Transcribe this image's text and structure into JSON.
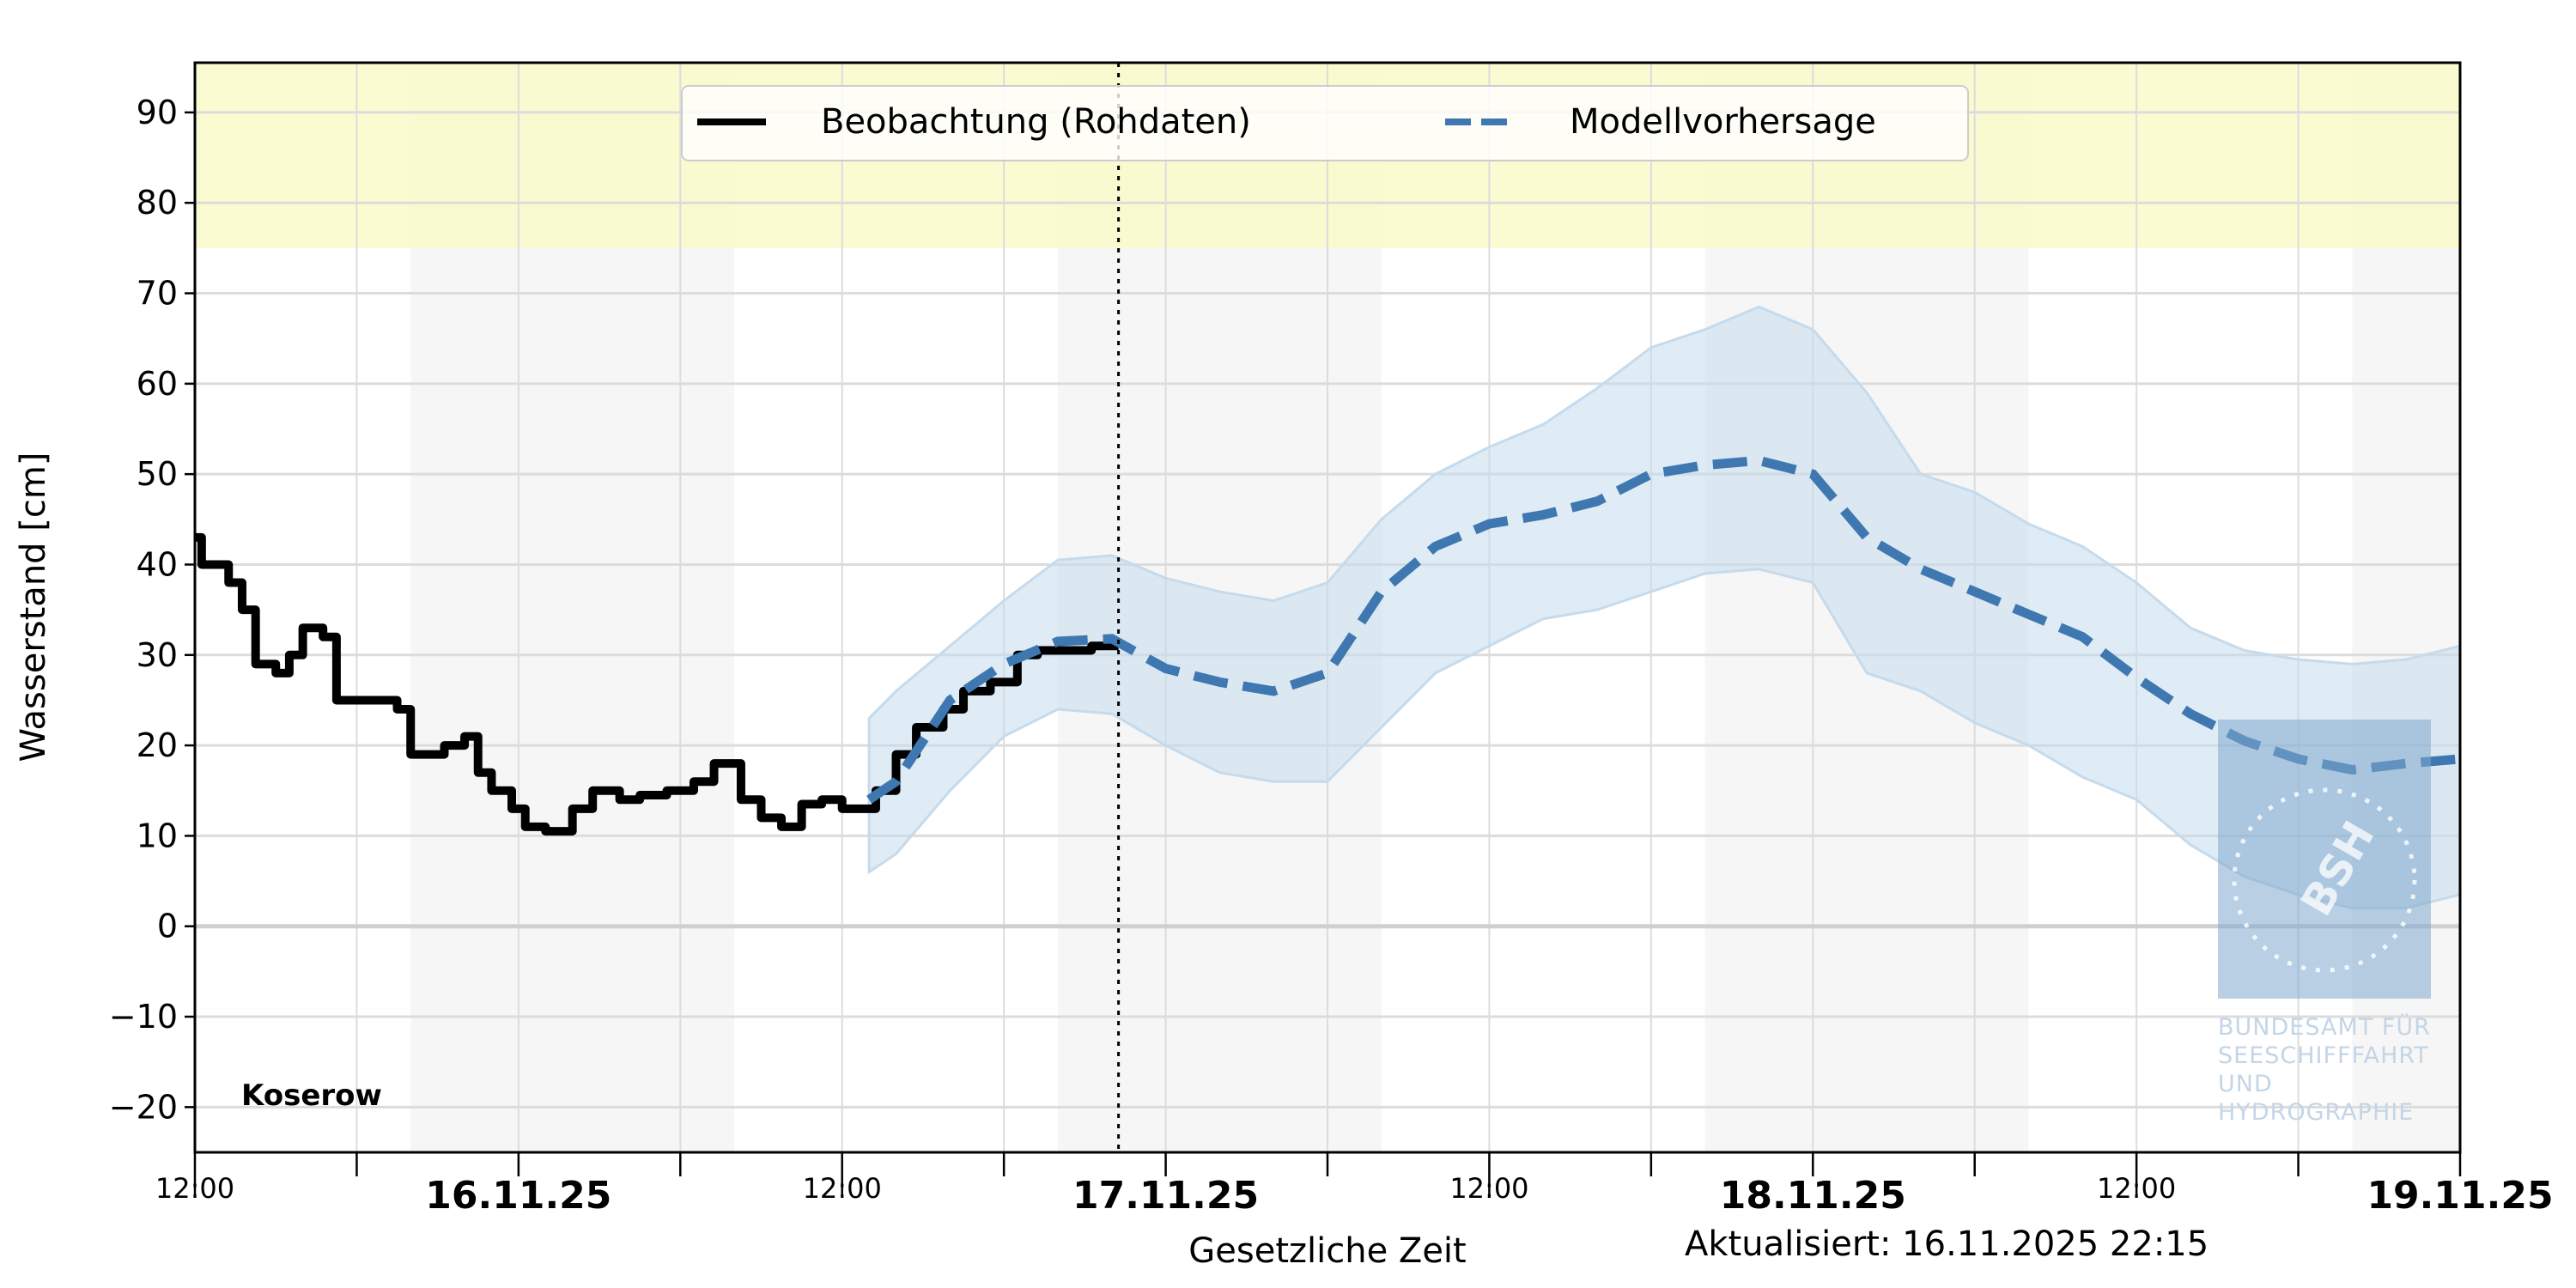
{
  "chart_data": {
    "type": "line",
    "station": "Koserow",
    "ylabel": "Wasserstand [cm]",
    "xlabel": "Gesetzliche Zeit",
    "updated": "Aktualisiert: 16.11.2025 22:15",
    "now": "2025-11-16T22:15",
    "xlim": [
      "2025-11-15T12:00",
      "2025-11-19T00:00"
    ],
    "ylim": [
      -25,
      95.5
    ],
    "y_ticks": [
      -20,
      -10,
      0,
      10,
      20,
      30,
      40,
      50,
      60,
      70,
      80,
      90
    ],
    "x_ticks": [
      {
        "time": "2025-11-15T12:00",
        "label": "12:00",
        "bold": false
      },
      {
        "time": "2025-11-16T00:00",
        "label": "16.11.25",
        "bold": true
      },
      {
        "time": "2025-11-16T12:00",
        "label": "12:00",
        "bold": false
      },
      {
        "time": "2025-11-17T00:00",
        "label": "17.11.25",
        "bold": true
      },
      {
        "time": "2025-11-17T12:00",
        "label": "12:00",
        "bold": false
      },
      {
        "time": "2025-11-18T00:00",
        "label": "18.11.25",
        "bold": true
      },
      {
        "time": "2025-11-18T12:00",
        "label": "12:00",
        "bold": false
      },
      {
        "time": "2025-11-19T00:00",
        "label": "19.11.25",
        "bold": true
      }
    ],
    "grid": true,
    "warning_band": {
      "from": 75,
      "color": "#fafaca"
    },
    "night_shading": {
      "from_hour": 20,
      "to_hour": 8,
      "color": "#f6f6f6"
    },
    "legend": {
      "placement": "top-center",
      "entries": [
        "Beobachtung (Rohdaten)",
        "Modellvorhersage"
      ]
    },
    "colors": {
      "observation": "#000000",
      "forecast": "#3f78b0",
      "forecast_band": "#c5dbec"
    },
    "series": [
      {
        "name": "Beobachtung (Rohdaten)",
        "style": "solid-steps",
        "points": [
          [
            "2025-11-15T12:00",
            43
          ],
          [
            "2025-11-15T12:15",
            40
          ],
          [
            "2025-11-15T12:45",
            40
          ],
          [
            "2025-11-15T13:15",
            38
          ],
          [
            "2025-11-15T13:45",
            35
          ],
          [
            "2025-11-15T14:15",
            29
          ],
          [
            "2025-11-15T15:00",
            28
          ],
          [
            "2025-11-15T15:30",
            30
          ],
          [
            "2025-11-15T16:00",
            33
          ],
          [
            "2025-11-15T16:45",
            32
          ],
          [
            "2025-11-15T17:15",
            25
          ],
          [
            "2025-11-15T18:45",
            25
          ],
          [
            "2025-11-15T19:30",
            24
          ],
          [
            "2025-11-15T20:00",
            19
          ],
          [
            "2025-11-15T20:30",
            19
          ],
          [
            "2025-11-15T21:15",
            20
          ],
          [
            "2025-11-15T22:00",
            21
          ],
          [
            "2025-11-15T22:30",
            17
          ],
          [
            "2025-11-15T23:00",
            15
          ],
          [
            "2025-11-15T23:45",
            13
          ],
          [
            "2025-11-16T00:15",
            11
          ],
          [
            "2025-11-16T01:00",
            10.5
          ],
          [
            "2025-11-16T02:00",
            13
          ],
          [
            "2025-11-16T02:45",
            15
          ],
          [
            "2025-11-16T03:45",
            14
          ],
          [
            "2025-11-16T04:30",
            14.5
          ],
          [
            "2025-11-16T05:30",
            15
          ],
          [
            "2025-11-16T06:30",
            16
          ],
          [
            "2025-11-16T07:15",
            18
          ],
          [
            "2025-11-16T07:45",
            18
          ],
          [
            "2025-11-16T08:15",
            14
          ],
          [
            "2025-11-16T09:00",
            12
          ],
          [
            "2025-11-16T09:45",
            11
          ],
          [
            "2025-11-16T10:30",
            13.5
          ],
          [
            "2025-11-16T11:15",
            14
          ],
          [
            "2025-11-16T12:00",
            13
          ],
          [
            "2025-11-16T12:30",
            13
          ],
          [
            "2025-11-16T13:15",
            15
          ],
          [
            "2025-11-16T14:00",
            19
          ],
          [
            "2025-11-16T14:45",
            22
          ],
          [
            "2025-11-16T15:45",
            24
          ],
          [
            "2025-11-16T16:30",
            26
          ],
          [
            "2025-11-16T17:30",
            27
          ],
          [
            "2025-11-16T18:30",
            30
          ],
          [
            "2025-11-16T19:15",
            30.5
          ],
          [
            "2025-11-16T20:15",
            30.5
          ],
          [
            "2025-11-16T21:15",
            31
          ],
          [
            "2025-11-16T22:15",
            31
          ]
        ]
      },
      {
        "name": "Modellvorhersage",
        "style": "dashed",
        "columns": [
          "time",
          "mean",
          "lower",
          "upper"
        ],
        "points": [
          [
            "2025-11-16T13:00",
            14,
            6,
            23
          ],
          [
            "2025-11-16T14:00",
            16,
            8,
            26
          ],
          [
            "2025-11-16T16:00",
            25,
            15,
            31
          ],
          [
            "2025-11-16T18:00",
            29,
            21,
            36
          ],
          [
            "2025-11-16T20:00",
            31.5,
            24,
            40.5
          ],
          [
            "2025-11-16T22:00",
            31.8,
            23.5,
            41
          ],
          [
            "2025-11-17T00:00",
            28.5,
            20,
            38.5
          ],
          [
            "2025-11-17T02:00",
            27,
            17,
            37
          ],
          [
            "2025-11-17T04:00",
            26,
            16,
            36
          ],
          [
            "2025-11-17T06:00",
            28,
            16,
            38
          ],
          [
            "2025-11-17T08:00",
            37,
            22,
            45
          ],
          [
            "2025-11-17T10:00",
            42,
            28,
            50
          ],
          [
            "2025-11-17T12:00",
            44.5,
            31,
            53
          ],
          [
            "2025-11-17T14:00",
            45.5,
            34,
            55.5
          ],
          [
            "2025-11-17T16:00",
            47,
            35,
            59.5
          ],
          [
            "2025-11-17T18:00",
            50,
            37,
            64
          ],
          [
            "2025-11-17T20:00",
            51,
            39,
            66
          ],
          [
            "2025-11-17T22:00",
            51.5,
            39.5,
            68.5
          ],
          [
            "2025-11-18T00:00",
            50,
            38,
            66
          ],
          [
            "2025-11-18T02:00",
            43,
            28,
            59
          ],
          [
            "2025-11-18T04:00",
            39.5,
            26,
            50
          ],
          [
            "2025-11-18T06:00",
            37,
            22.5,
            48
          ],
          [
            "2025-11-18T08:00",
            34.5,
            20,
            44.5
          ],
          [
            "2025-11-18T10:00",
            32,
            16.5,
            42
          ],
          [
            "2025-11-18T12:00",
            27.5,
            14,
            38
          ],
          [
            "2025-11-18T14:00",
            23.5,
            9,
            33
          ],
          [
            "2025-11-18T16:00",
            20.5,
            5.5,
            30.5
          ],
          [
            "2025-11-18T18:00",
            18.5,
            3.5,
            29.5
          ],
          [
            "2025-11-18T20:00",
            17.3,
            2,
            29
          ],
          [
            "2025-11-18T22:00",
            18,
            2,
            29.5
          ],
          [
            "2025-11-19T00:00",
            18.5,
            3.5,
            31
          ]
        ]
      }
    ],
    "watermark": {
      "logo_text": "BSH",
      "lines": [
        "BUNDESAMT FÜR",
        "SEESCHIFFFAHRT",
        "UND",
        "HYDROGRAPHIE"
      ]
    }
  }
}
